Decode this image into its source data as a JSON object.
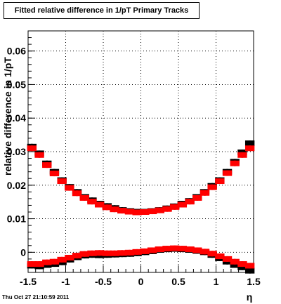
{
  "title": "Fitted relative difference in 1/pT  Primary Tracks",
  "footer": "Thu Oct 27 21:10:59 2011",
  "chart_data": {
    "type": "scatter",
    "title": "Fitted relative difference in 1/pT  Primary Tracks",
    "xlabel": "η",
    "ylabel": "relative difference in 1/pT",
    "xlim": [
      -1.5,
      1.5
    ],
    "ylim": [
      -0.006,
      0.066
    ],
    "grid": true,
    "x_ticks": [
      -1.5,
      -1,
      -0.5,
      0,
      0.5,
      1,
      1.5
    ],
    "x_tick_labels": [
      "-1.5",
      "-1",
      "-0.5",
      "0",
      "0.5",
      "1",
      "1.5"
    ],
    "y_ticks": [
      0,
      0.01,
      0.02,
      0.03,
      0.04,
      0.05,
      0.06
    ],
    "y_tick_labels": [
      "0",
      "0.01",
      "0.02",
      "0.03",
      "0.04",
      "0.05",
      "0.06"
    ],
    "series": [
      {
        "color": "#000000",
        "marker": "square",
        "group": "upper",
        "x": [
          -1.45,
          -1.35,
          -1.25,
          -1.15,
          -1.05,
          -0.95,
          -0.85,
          -0.75,
          -0.65,
          -0.55,
          -0.45,
          -0.35,
          -0.25,
          -0.15,
          -0.05,
          0.05,
          0.15,
          0.25,
          0.35,
          0.45,
          0.55,
          0.65,
          0.75,
          0.85,
          0.95,
          1.05,
          1.15,
          1.25,
          1.35,
          1.45
        ],
        "y": [
          0.0315,
          0.0295,
          0.0265,
          0.024,
          0.0215,
          0.0195,
          0.018,
          0.0165,
          0.0155,
          0.0145,
          0.0138,
          0.0132,
          0.0126,
          0.0123,
          0.0121,
          0.0121,
          0.0123,
          0.0126,
          0.0131,
          0.0137,
          0.0145,
          0.0153,
          0.0165,
          0.018,
          0.0198,
          0.0215,
          0.024,
          0.027,
          0.0298,
          0.0325
        ]
      },
      {
        "color": "#ff0000",
        "marker": "square",
        "group": "upper",
        "x": [
          -1.45,
          -1.35,
          -1.25,
          -1.15,
          -1.05,
          -0.95,
          -0.85,
          -0.75,
          -0.65,
          -0.55,
          -0.45,
          -0.35,
          -0.25,
          -0.15,
          -0.05,
          0.05,
          0.15,
          0.25,
          0.35,
          0.45,
          0.55,
          0.65,
          0.75,
          0.85,
          0.95,
          1.05,
          1.15,
          1.25,
          1.35,
          1.45
        ],
        "y": [
          0.031,
          0.029,
          0.026,
          0.0235,
          0.0212,
          0.0192,
          0.0176,
          0.0162,
          0.0151,
          0.0142,
          0.0134,
          0.0128,
          0.0124,
          0.0121,
          0.0119,
          0.012,
          0.0122,
          0.0125,
          0.0129,
          0.0135,
          0.0142,
          0.0151,
          0.0162,
          0.0177,
          0.0194,
          0.0212,
          0.0236,
          0.0265,
          0.029,
          0.031
        ]
      },
      {
        "color": "#000000",
        "marker": "square",
        "group": "lower",
        "x": [
          -1.45,
          -1.35,
          -1.25,
          -1.15,
          -1.05,
          -0.95,
          -0.85,
          -0.75,
          -0.65,
          -0.55,
          -0.45,
          -0.35,
          -0.25,
          -0.15,
          -0.05,
          0.05,
          0.15,
          0.25,
          0.35,
          0.45,
          0.55,
          0.65,
          0.75,
          0.85,
          0.95,
          1.05,
          1.15,
          1.25,
          1.35,
          1.45
        ],
        "y": [
          -0.004,
          -0.0042,
          -0.0038,
          -0.0035,
          -0.003,
          -0.0022,
          -0.0015,
          -0.001,
          -0.0008,
          -0.0009,
          -0.0008,
          -0.0007,
          -0.0006,
          -0.0005,
          -0.0003,
          0.0,
          0.0003,
          0.0007,
          0.0009,
          0.001,
          0.0009,
          0.0007,
          0.0004,
          0.0,
          -0.0008,
          -0.0018,
          -0.0028,
          -0.0038,
          -0.0045,
          -0.0055
        ]
      },
      {
        "color": "#ff0000",
        "marker": "square",
        "group": "lower",
        "x": [
          -1.45,
          -1.35,
          -1.25,
          -1.15,
          -1.05,
          -0.95,
          -0.85,
          -0.75,
          -0.65,
          -0.55,
          -0.45,
          -0.35,
          -0.25,
          -0.15,
          -0.05,
          0.05,
          0.15,
          0.25,
          0.35,
          0.45,
          0.55,
          0.65,
          0.75,
          0.85,
          0.95,
          1.05,
          1.15,
          1.25,
          1.35,
          1.45
        ],
        "y": [
          -0.0035,
          -0.0035,
          -0.003,
          -0.0028,
          -0.0022,
          -0.0016,
          -0.001,
          -0.0005,
          -0.0003,
          -0.0002,
          -0.0003,
          -0.0003,
          -0.0002,
          -0.0001,
          0.0001,
          0.0003,
          0.0006,
          0.0009,
          0.0011,
          0.0012,
          0.0011,
          0.0009,
          0.0006,
          0.0002,
          -0.0004,
          -0.0012,
          -0.002,
          -0.0028,
          -0.0035,
          -0.004
        ]
      }
    ]
  }
}
